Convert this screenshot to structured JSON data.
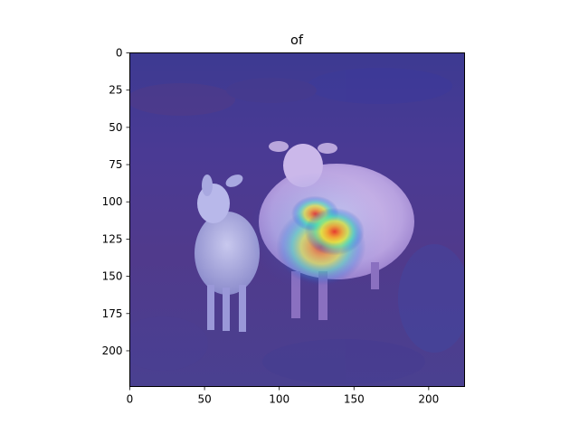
{
  "chart_data": {
    "type": "heatmap",
    "title": "of",
    "xlabel": "",
    "ylabel": "",
    "xlim": [
      0,
      224
    ],
    "ylim": [
      224,
      0
    ],
    "x_ticks": [
      0,
      50,
      100,
      150,
      200
    ],
    "y_ticks": [
      0,
      25,
      50,
      75,
      100,
      125,
      150,
      175,
      200
    ],
    "grid": false,
    "image_content": "two white sheep standing on a grassy field, overlaid with a jet-colormap attention heatmap",
    "heatmap_peak": {
      "x": 137,
      "y": 120,
      "intensity": 1.0
    },
    "heatmap_regions": [
      {
        "x": 137,
        "y": 120,
        "rx": 20,
        "ry": 16,
        "intensity": 1.0
      },
      {
        "x": 124,
        "y": 108,
        "rx": 16,
        "ry": 12,
        "intensity": 0.85
      },
      {
        "x": 128,
        "y": 130,
        "rx": 30,
        "ry": 26,
        "intensity": 0.6
      },
      {
        "x": 125,
        "y": 120,
        "rx": 46,
        "ry": 40,
        "intensity": 0.3
      }
    ],
    "colormap": "jet",
    "overlay_colors": {
      "base": "#3a2f8c",
      "low": "#1b3fb0",
      "mid": "#2fd3c8",
      "high": "#f6e23a",
      "peak": "#e8322b"
    }
  }
}
